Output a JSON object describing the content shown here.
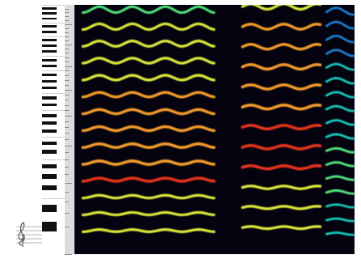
{
  "app": {
    "title": ""
  },
  "colors": {
    "background": "#05030f",
    "palette": [
      "#1a0b4a",
      "#2c2a9c",
      "#1e7fd6",
      "#18c4b8",
      "#4fe07a",
      "#d9e63a",
      "#f09a2a",
      "#e0321e"
    ]
  },
  "icons": {
    "clef": "treble-clef-icon"
  },
  "spectrogram": {
    "segments": [
      {
        "name": "note-1",
        "start": 0.03,
        "end": 0.5,
        "fundamental": 0.11,
        "intensity": 0.95
      },
      {
        "name": "note-2",
        "start": 0.6,
        "end": 0.88,
        "fundamental": 0.13,
        "intensity": 1.0
      },
      {
        "name": "note-3",
        "start": 0.9,
        "end": 1.0,
        "fundamental": 0.09,
        "intensity": 0.55
      }
    ]
  }
}
